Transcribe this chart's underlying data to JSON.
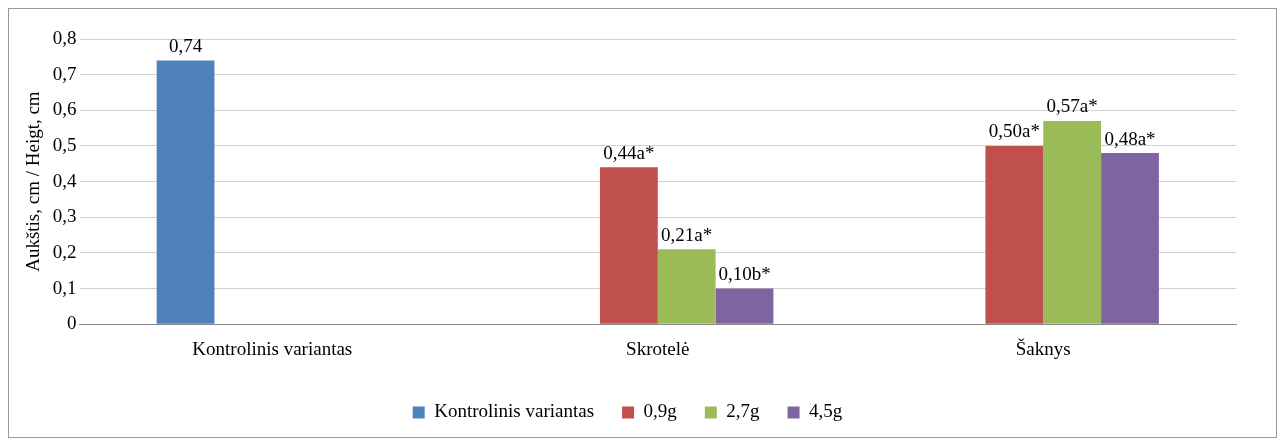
{
  "chart_data": {
    "type": "bar",
    "ylabel": "Aukštis, cm / Heigt, cm",
    "categories": [
      "Kontrolinis variantas",
      "Skrotelė",
      "Šaknys"
    ],
    "series": [
      {
        "name": "Kontrolinis variantas",
        "color": "#4f81bd",
        "values": [
          0.74,
          null,
          null
        ],
        "value_labels": [
          "0,74",
          null,
          null
        ]
      },
      {
        "name": "0,9g",
        "color": "#c0504d",
        "values": [
          null,
          0.44,
          0.5
        ],
        "value_labels": [
          null,
          "0,44a*",
          "0,50a*"
        ]
      },
      {
        "name": "2,7g",
        "color": "#9bbb59",
        "values": [
          null,
          0.21,
          0.57
        ],
        "value_labels": [
          null,
          "0,21a*",
          "0,57a*"
        ]
      },
      {
        "name": "4,5g",
        "color": "#8064a2",
        "values": [
          null,
          0.1,
          0.48
        ],
        "value_labels": [
          null,
          "0,10b*",
          "0,48a*"
        ]
      }
    ],
    "ylim": [
      0,
      0.8
    ],
    "yticks": [
      {
        "value": 0,
        "label": "0"
      },
      {
        "value": 0.1,
        "label": "0,1"
      },
      {
        "value": 0.2,
        "label": "0,2"
      },
      {
        "value": 0.3,
        "label": "0,3"
      },
      {
        "value": 0.4,
        "label": "0,4"
      },
      {
        "value": 0.5,
        "label": "0,5"
      },
      {
        "value": 0.6,
        "label": "0,6"
      },
      {
        "value": 0.7,
        "label": "0,7"
      },
      {
        "value": 0.8,
        "label": "0,8"
      }
    ],
    "grid": "y",
    "legend": "bottom"
  }
}
